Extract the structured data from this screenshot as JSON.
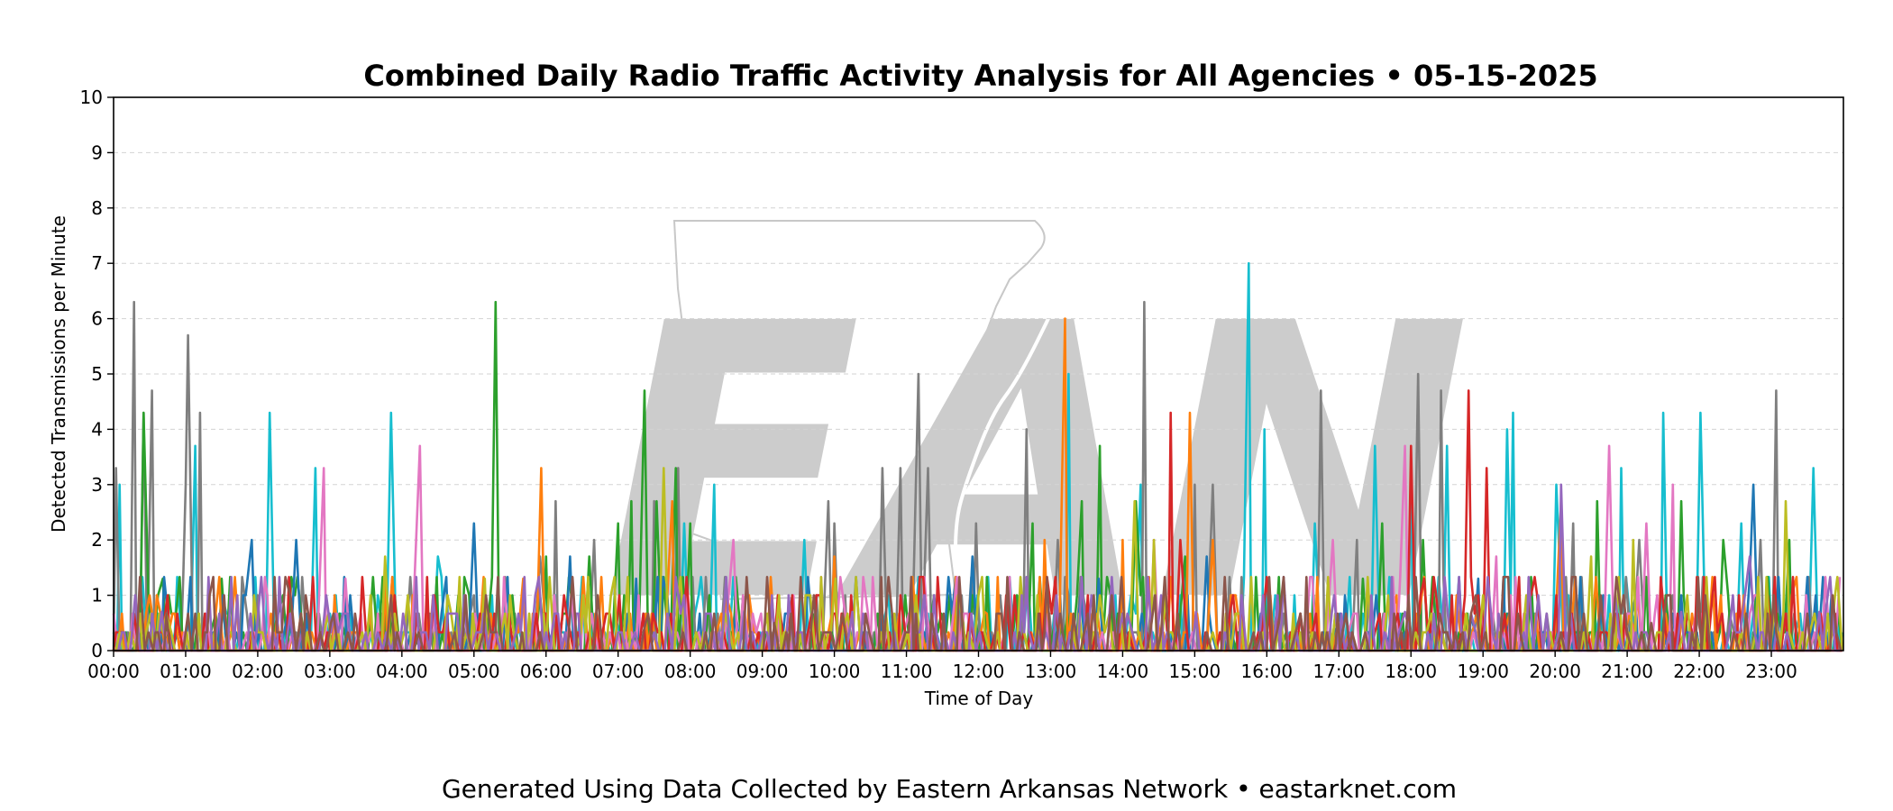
{
  "chart_data": {
    "type": "line",
    "title": "Combined Daily Radio Traffic Activity Analysis for All Agencies • 05-15-2025",
    "xlabel": "Time of Day",
    "ylabel": "Detected Transmissions per Minute",
    "xlim": [
      "00:00",
      "24:00"
    ],
    "ylim": [
      0,
      10
    ],
    "x_ticks": [
      "00:00",
      "01:00",
      "02:00",
      "03:00",
      "04:00",
      "05:00",
      "06:00",
      "07:00",
      "08:00",
      "09:00",
      "10:00",
      "11:00",
      "12:00",
      "13:00",
      "14:00",
      "15:00",
      "16:00",
      "17:00",
      "18:00",
      "19:00",
      "20:00",
      "21:00",
      "22:00",
      "23:00"
    ],
    "y_ticks": [
      0,
      1,
      2,
      3,
      4,
      5,
      6,
      7,
      8,
      9,
      10
    ],
    "grid": "horizontal dashed",
    "legend": "none",
    "footer": "Generated Using Data Collected by Eastern Arkansas Network • eastarknet.com",
    "watermark": "EAN",
    "series": [
      {
        "color": "#17becf",
        "peaks": [
          [
            "00:05",
            3.0
          ],
          [
            "01:08",
            3.7
          ],
          [
            "02:10",
            4.3
          ],
          [
            "02:48",
            3.3
          ],
          [
            "03:50",
            4.3
          ],
          [
            "04:30",
            1.7
          ],
          [
            "07:55",
            2.3
          ],
          [
            "08:20",
            3.0
          ],
          [
            "09:35",
            2.0
          ],
          [
            "10:45",
            1.0
          ],
          [
            "13:15",
            5.0
          ],
          [
            "14:15",
            3.0
          ],
          [
            "15:45",
            7.0
          ],
          [
            "15:58",
            4.0
          ],
          [
            "16:40",
            2.3
          ],
          [
            "17:30",
            3.7
          ],
          [
            "18:00",
            3.0
          ],
          [
            "18:30",
            3.7
          ],
          [
            "19:20",
            4.0
          ],
          [
            "19:25",
            4.3
          ],
          [
            "20:00",
            3.0
          ],
          [
            "20:55",
            3.3
          ],
          [
            "21:30",
            4.3
          ],
          [
            "22:00",
            4.3
          ],
          [
            "22:35",
            2.3
          ],
          [
            "23:35",
            3.3
          ]
        ]
      },
      {
        "color": "#7f7f7f",
        "peaks": [
          [
            "00:02",
            3.3
          ],
          [
            "00:17",
            6.3
          ],
          [
            "00:25",
            4.3
          ],
          [
            "00:32",
            4.7
          ],
          [
            "01:00",
            3.0
          ],
          [
            "01:02",
            5.7
          ],
          [
            "01:12",
            4.3
          ],
          [
            "02:00",
            1.0
          ],
          [
            "05:55",
            1.7
          ],
          [
            "06:08",
            2.7
          ],
          [
            "06:40",
            2.0
          ],
          [
            "07:30",
            2.7
          ],
          [
            "07:50",
            3.3
          ],
          [
            "09:55",
            2.7
          ],
          [
            "10:00",
            2.3
          ],
          [
            "10:40",
            3.3
          ],
          [
            "10:55",
            3.3
          ],
          [
            "11:10",
            5.0
          ],
          [
            "11:18",
            3.3
          ],
          [
            "11:58",
            2.3
          ],
          [
            "12:40",
            4.0
          ],
          [
            "13:05",
            2.0
          ],
          [
            "14:18",
            6.3
          ],
          [
            "15:00",
            3.0
          ],
          [
            "15:15",
            3.0
          ],
          [
            "16:45",
            4.7
          ],
          [
            "17:15",
            2.0
          ],
          [
            "18:05",
            5.0
          ],
          [
            "18:25",
            4.7
          ],
          [
            "20:15",
            2.3
          ],
          [
            "21:10",
            2.0
          ],
          [
            "22:50",
            2.0
          ],
          [
            "23:03",
            4.7
          ]
        ]
      },
      {
        "color": "#2ca02c",
        "peaks": [
          [
            "00:25",
            4.3
          ],
          [
            "00:40",
            1.3
          ],
          [
            "01:30",
            1.3
          ],
          [
            "05:18",
            6.3
          ],
          [
            "06:00",
            1.7
          ],
          [
            "06:35",
            1.7
          ],
          [
            "07:00",
            2.3
          ],
          [
            "07:10",
            2.7
          ],
          [
            "07:22",
            4.7
          ],
          [
            "07:32",
            2.7
          ],
          [
            "07:48",
            3.3
          ],
          [
            "08:00",
            2.3
          ],
          [
            "12:45",
            2.3
          ],
          [
            "13:25",
            2.7
          ],
          [
            "13:40",
            3.7
          ],
          [
            "14:10",
            2.7
          ],
          [
            "14:52",
            1.7
          ],
          [
            "17:20",
            1.3
          ],
          [
            "17:35",
            2.3
          ],
          [
            "18:10",
            2.0
          ],
          [
            "20:35",
            2.7
          ],
          [
            "21:45",
            2.7
          ],
          [
            "22:20",
            2.0
          ],
          [
            "23:15",
            2.0
          ]
        ]
      },
      {
        "color": "#1f77b4",
        "peaks": [
          [
            "01:55",
            2.0
          ],
          [
            "02:32",
            2.0
          ],
          [
            "05:00",
            2.3
          ],
          [
            "06:20",
            1.7
          ],
          [
            "07:15",
            1.3
          ],
          [
            "09:25",
            1.0
          ],
          [
            "11:55",
            1.7
          ],
          [
            "13:40",
            1.3
          ],
          [
            "15:10",
            1.7
          ],
          [
            "17:05",
            1.0
          ],
          [
            "18:55",
            1.3
          ],
          [
            "20:40",
            1.0
          ],
          [
            "22:45",
            3.0
          ],
          [
            "23:50",
            1.0
          ]
        ]
      },
      {
        "color": "#ff7f0e",
        "peaks": [
          [
            "05:40",
            1.3
          ],
          [
            "05:55",
            3.3
          ],
          [
            "07:45",
            2.7
          ],
          [
            "10:00",
            1.7
          ],
          [
            "12:05",
            0.7
          ],
          [
            "12:55",
            2.0
          ],
          [
            "13:12",
            6.0
          ],
          [
            "14:00",
            2.0
          ],
          [
            "14:55",
            4.3
          ],
          [
            "15:15",
            2.0
          ],
          [
            "20:05",
            2.7
          ]
        ]
      },
      {
        "color": "#e377c2",
        "peaks": [
          [
            "02:55",
            3.3
          ],
          [
            "03:12",
            1.3
          ],
          [
            "04:10",
            1.0
          ],
          [
            "04:15",
            3.7
          ],
          [
            "06:20",
            1.0
          ],
          [
            "08:35",
            2.0
          ],
          [
            "14:25",
            2.0
          ],
          [
            "16:55",
            2.0
          ],
          [
            "17:55",
            3.7
          ],
          [
            "19:10",
            1.7
          ],
          [
            "20:45",
            3.7
          ],
          [
            "21:15",
            2.3
          ],
          [
            "21:38",
            3.0
          ]
        ]
      },
      {
        "color": "#d62728",
        "peaks": [
          [
            "14:40",
            4.3
          ],
          [
            "14:48",
            2.0
          ],
          [
            "18:00",
            3.7
          ],
          [
            "18:10",
            1.3
          ],
          [
            "18:48",
            4.7
          ],
          [
            "19:02",
            3.3
          ],
          [
            "19:40",
            1.0
          ],
          [
            "20:00",
            1.0
          ]
        ]
      },
      {
        "color": "#bcbd22",
        "peaks": [
          [
            "03:45",
            1.7
          ],
          [
            "04:05",
            1.0
          ],
          [
            "05:08",
            1.3
          ],
          [
            "05:30",
            1.0
          ],
          [
            "07:38",
            3.3
          ],
          [
            "10:00",
            1.3
          ],
          [
            "14:10",
            2.7
          ],
          [
            "14:25",
            2.0
          ],
          [
            "19:00",
            1.0
          ],
          [
            "20:30",
            1.7
          ],
          [
            "21:05",
            2.0
          ],
          [
            "23:12",
            2.7
          ]
        ]
      },
      {
        "color": "#9467bd",
        "peaks": [
          [
            "00:40",
            0.7
          ],
          [
            "08:45",
            0.7
          ],
          [
            "10:15",
            0.7
          ],
          [
            "15:00",
            0.7
          ],
          [
            "17:55",
            0.7
          ],
          [
            "20:05",
            3.0
          ],
          [
            "21:45",
            0.7
          ],
          [
            "22:42",
            1.7
          ],
          [
            "23:40",
            0.7
          ]
        ]
      },
      {
        "color": "#8c564b",
        "peaks": [
          [
            "03:00",
            0.5
          ],
          [
            "09:10",
            0.5
          ],
          [
            "16:10",
            0.5
          ],
          [
            "21:20",
            0.5
          ]
        ]
      }
    ]
  }
}
